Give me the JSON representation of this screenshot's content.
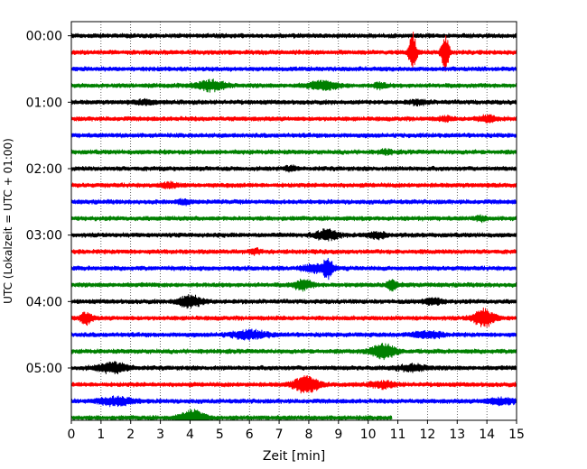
{
  "chart_data": {
    "type": "line",
    "xlabel": "Zeit  [min]",
    "ylabel": "UTC (Lokalzeit = UTC + 01:00)",
    "xlim": [
      0,
      15
    ],
    "x_ticks": [
      "0",
      "1",
      "2",
      "3",
      "4",
      "5",
      "6",
      "7",
      "8",
      "9",
      "10",
      "11",
      "12",
      "13",
      "14",
      "15"
    ],
    "y_ticks": [
      "00:00",
      "01:00",
      "02:00",
      "03:00",
      "04:00",
      "05:00"
    ],
    "grid": "vertical dotted at each minute",
    "trace_interval_min": 15,
    "trace_colors": [
      "#000000",
      "#ff0000",
      "#0000ff",
      "#008000"
    ],
    "traces": [
      {
        "start": "00:00",
        "end_min": 15,
        "events": []
      },
      {
        "start": "00:15",
        "end_min": 15,
        "events": [
          {
            "t": 11.5,
            "amp": 22,
            "w": 0.12
          },
          {
            "t": 12.6,
            "amp": 20,
            "w": 0.12
          }
        ]
      },
      {
        "start": "00:30",
        "end_min": 15,
        "events": []
      },
      {
        "start": "00:45",
        "end_min": 15,
        "events": [
          {
            "t": 4.7,
            "amp": 5,
            "w": 0.5
          },
          {
            "t": 8.5,
            "amp": 4,
            "w": 0.5
          },
          {
            "t": 10.4,
            "amp": 3,
            "w": 0.2
          }
        ]
      },
      {
        "start": "01:00",
        "end_min": 15,
        "events": [
          {
            "t": 2.5,
            "amp": 2,
            "w": 0.3
          },
          {
            "t": 11.7,
            "amp": 2,
            "w": 0.3
          }
        ]
      },
      {
        "start": "01:15",
        "end_min": 15,
        "events": [
          {
            "t": 14.0,
            "amp": 3,
            "w": 0.3
          },
          {
            "t": 12.6,
            "amp": 2,
            "w": 0.2
          }
        ]
      },
      {
        "start": "01:30",
        "end_min": 15,
        "events": []
      },
      {
        "start": "01:45",
        "end_min": 15,
        "events": [
          {
            "t": 10.6,
            "amp": 2,
            "w": 0.2
          }
        ]
      },
      {
        "start": "02:00",
        "end_min": 15,
        "events": [
          {
            "t": 7.4,
            "amp": 2,
            "w": 0.2
          }
        ]
      },
      {
        "start": "02:15",
        "end_min": 15,
        "events": [
          {
            "t": 3.3,
            "amp": 2,
            "w": 0.3
          }
        ]
      },
      {
        "start": "02:30",
        "end_min": 15,
        "events": [
          {
            "t": 3.8,
            "amp": 2,
            "w": 0.2
          }
        ]
      },
      {
        "start": "02:45",
        "end_min": 15,
        "events": [
          {
            "t": 13.8,
            "amp": 2,
            "w": 0.2
          }
        ]
      },
      {
        "start": "03:00",
        "end_min": 15,
        "events": [
          {
            "t": 8.6,
            "amp": 5,
            "w": 0.4
          },
          {
            "t": 10.3,
            "amp": 3,
            "w": 0.3
          }
        ]
      },
      {
        "start": "03:15",
        "end_min": 15,
        "events": [
          {
            "t": 6.2,
            "amp": 2,
            "w": 0.2
          }
        ]
      },
      {
        "start": "03:30",
        "end_min": 15,
        "events": [
          {
            "t": 8.3,
            "amp": 4,
            "w": 0.5
          },
          {
            "t": 8.65,
            "amp": 9,
            "w": 0.15
          }
        ]
      },
      {
        "start": "03:45",
        "end_min": 15,
        "events": [
          {
            "t": 7.8,
            "amp": 5,
            "w": 0.3
          },
          {
            "t": 10.8,
            "amp": 6,
            "w": 0.15
          }
        ]
      },
      {
        "start": "04:00",
        "end_min": 15,
        "events": [
          {
            "t": 4.0,
            "amp": 6,
            "w": 0.4
          },
          {
            "t": 12.2,
            "amp": 3,
            "w": 0.3
          }
        ]
      },
      {
        "start": "04:15",
        "end_min": 15,
        "events": [
          {
            "t": 0.5,
            "amp": 6,
            "w": 0.2
          },
          {
            "t": 13.9,
            "amp": 9,
            "w": 0.35
          }
        ]
      },
      {
        "start": "04:30",
        "end_min": 15,
        "events": [
          {
            "t": 6.0,
            "amp": 4,
            "w": 0.6
          },
          {
            "t": 12.0,
            "amp": 3,
            "w": 0.5
          }
        ]
      },
      {
        "start": "04:45",
        "end_min": 15,
        "events": [
          {
            "t": 10.5,
            "amp": 8,
            "w": 0.4
          }
        ]
      },
      {
        "start": "05:00",
        "end_min": 15,
        "events": [
          {
            "t": 1.4,
            "amp": 5,
            "w": 0.5
          },
          {
            "t": 11.5,
            "amp": 3,
            "w": 0.5
          }
        ]
      },
      {
        "start": "05:15",
        "end_min": 15,
        "events": [
          {
            "t": 7.9,
            "amp": 9,
            "w": 0.4
          },
          {
            "t": 10.5,
            "amp": 3,
            "w": 0.4
          }
        ]
      },
      {
        "start": "05:30",
        "end_min": 15,
        "events": [
          {
            "t": 1.5,
            "amp": 4,
            "w": 0.6
          },
          {
            "t": 14.5,
            "amp": 3,
            "w": 0.5
          }
        ]
      },
      {
        "start": "05:45",
        "end_min": 10.8,
        "events": [
          {
            "t": 4.1,
            "amp": 8,
            "w": 0.4
          }
        ]
      }
    ]
  }
}
